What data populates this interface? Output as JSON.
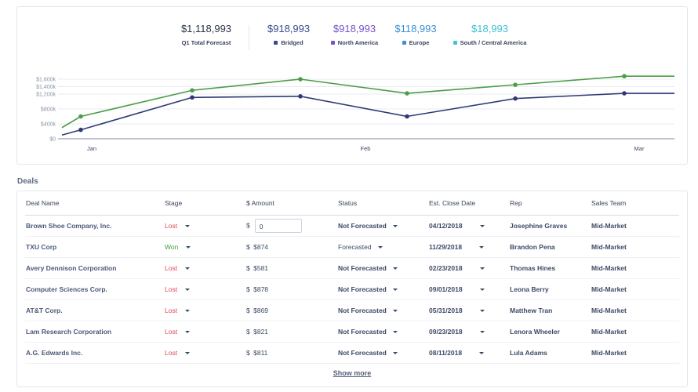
{
  "summary": {
    "total": {
      "value": "$1,118,993",
      "label": "Q1 Total Forecast"
    },
    "series": [
      {
        "value": "$918,993",
        "label": "Bridged",
        "color": "#3a4a91"
      },
      {
        "value": "$918,993",
        "label": "North America",
        "color": "#7852c9"
      },
      {
        "value": "$118,993",
        "label": "Europe",
        "color": "#3c8fd2"
      },
      {
        "value": "$18,993",
        "label": "South / Central America",
        "color": "#3fc2d3"
      }
    ]
  },
  "chart_data": {
    "type": "line",
    "x_ticks": [
      "Jan",
      "Feb",
      "Mar"
    ],
    "y_ticks": [
      "$0",
      "$400k",
      "$800k",
      "$1,200k",
      "$1,400k",
      "$1,600k"
    ],
    "y_tick_values": [
      0,
      400,
      800,
      1200,
      1400,
      1600
    ],
    "ylim": [
      0,
      1600
    ],
    "grid": true,
    "series": [
      {
        "color": "#4b9d46",
        "points": [
          [
            1,
            300
          ],
          [
            2,
            600
          ],
          [
            3,
            1300
          ],
          [
            4,
            1600
          ],
          [
            5,
            1220
          ],
          [
            6,
            1450
          ],
          [
            7,
            1680
          ],
          [
            8,
            1680
          ]
        ]
      },
      {
        "color": "#2f3a78",
        "points": [
          [
            1,
            100
          ],
          [
            2,
            240
          ],
          [
            3,
            1110
          ],
          [
            4,
            1140
          ],
          [
            5,
            600
          ],
          [
            6,
            1080
          ],
          [
            7,
            1220
          ],
          [
            8,
            1220
          ]
        ]
      }
    ],
    "markers": [
      2,
      3,
      4,
      5,
      6,
      7
    ]
  },
  "deals": {
    "title": "Deals",
    "columns": [
      "Deal Name",
      "Stage",
      "$ Amount",
      "Status",
      "Est. Close Date",
      "Rep",
      "Sales Team"
    ],
    "rows": [
      {
        "name": "Brown Shoe Company, Inc.",
        "stage": "Lost",
        "currency": "$",
        "amount": "0",
        "status": "Not Forecasted",
        "date": "04/12/2018",
        "rep": "Josephine Graves",
        "team": "Mid-Market"
      },
      {
        "name": "TXU Corp",
        "stage": "Won",
        "currency": "$",
        "amount": "$874",
        "status": "Forecasted",
        "date": "11/29/2018",
        "rep": "Brandon Pena",
        "team": "Mid-Market"
      },
      {
        "name": "Avery Dennison Corporation",
        "stage": "Lost",
        "currency": "$",
        "amount": "$581",
        "status": "Not Forecasted",
        "date": "02/23/2018",
        "rep": "Thomas Hines",
        "team": "Mid-Market"
      },
      {
        "name": "Computer Sciences Corp.",
        "stage": "Lost",
        "currency": "$",
        "amount": "$878",
        "status": "Not Forecasted",
        "date": "09/01/2018",
        "rep": "Leona Berry",
        "team": "Mid-Market"
      },
      {
        "name": "AT&T Corp.",
        "stage": "Lost",
        "currency": "$",
        "amount": "$869",
        "status": "Not Forecasted",
        "date": "05/31/2018",
        "rep": "Matthew Tran",
        "team": "Mid-Market"
      },
      {
        "name": "Lam Research Corporation",
        "stage": "Lost",
        "currency": "$",
        "amount": "$821",
        "status": "Not Forecasted",
        "date": "09/23/2018",
        "rep": "Lenora Wheeler",
        "team": "Mid-Market"
      },
      {
        "name": "A.G. Edwards Inc.",
        "stage": "Lost",
        "currency": "$",
        "amount": "$811",
        "status": "Not Forecasted",
        "date": "08/11/2018",
        "rep": "Lula Adams",
        "team": "Mid-Market"
      }
    ],
    "show_more": "Show more"
  }
}
